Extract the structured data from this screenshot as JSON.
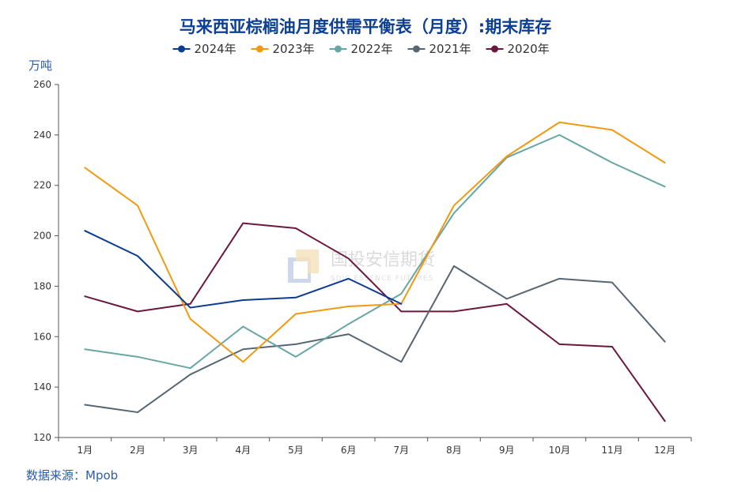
{
  "chart_data": {
    "type": "line",
    "title": "马来西亚棕榈油月度供需平衡表（月度）:期末库存",
    "ylabel": "万吨",
    "ylim": [
      120,
      260
    ],
    "yticks": [
      120,
      140,
      160,
      180,
      200,
      220,
      240,
      260
    ],
    "categories": [
      "1月",
      "2月",
      "3月",
      "4月",
      "5月",
      "6月",
      "7月",
      "8月",
      "9月",
      "10月",
      "11月",
      "12月"
    ],
    "legend_position": "top",
    "grid": false,
    "series": [
      {
        "name": "2024年",
        "color": "#0b3c91",
        "values": [
          202,
          192,
          171.5,
          174.5,
          175.5,
          183,
          173,
          null,
          null,
          null,
          null,
          null
        ]
      },
      {
        "name": "2023年",
        "color": "#f09a12",
        "values": [
          227,
          212,
          167,
          150,
          169,
          172,
          173,
          212,
          231.5,
          245,
          242,
          229
        ]
      },
      {
        "name": "2022年",
        "color": "#68a5a5",
        "values": [
          155,
          152,
          147.5,
          164,
          152,
          165,
          177,
          209,
          231,
          240,
          229,
          219.5
        ]
      },
      {
        "name": "2021年",
        "color": "#566673",
        "values": [
          133,
          130,
          145,
          155,
          157,
          161,
          150,
          188,
          175,
          183,
          181.5,
          158
        ]
      },
      {
        "name": "2020年",
        "color": "#6b1740",
        "values": [
          176,
          170,
          173,
          205,
          203,
          191,
          170,
          170,
          173,
          157,
          156,
          126.5
        ]
      }
    ]
  },
  "watermark": {
    "name_cn": "国投安信期货",
    "name_en": "SDIC ESSENCE FUTURES"
  },
  "source": "数据来源：Mpob"
}
